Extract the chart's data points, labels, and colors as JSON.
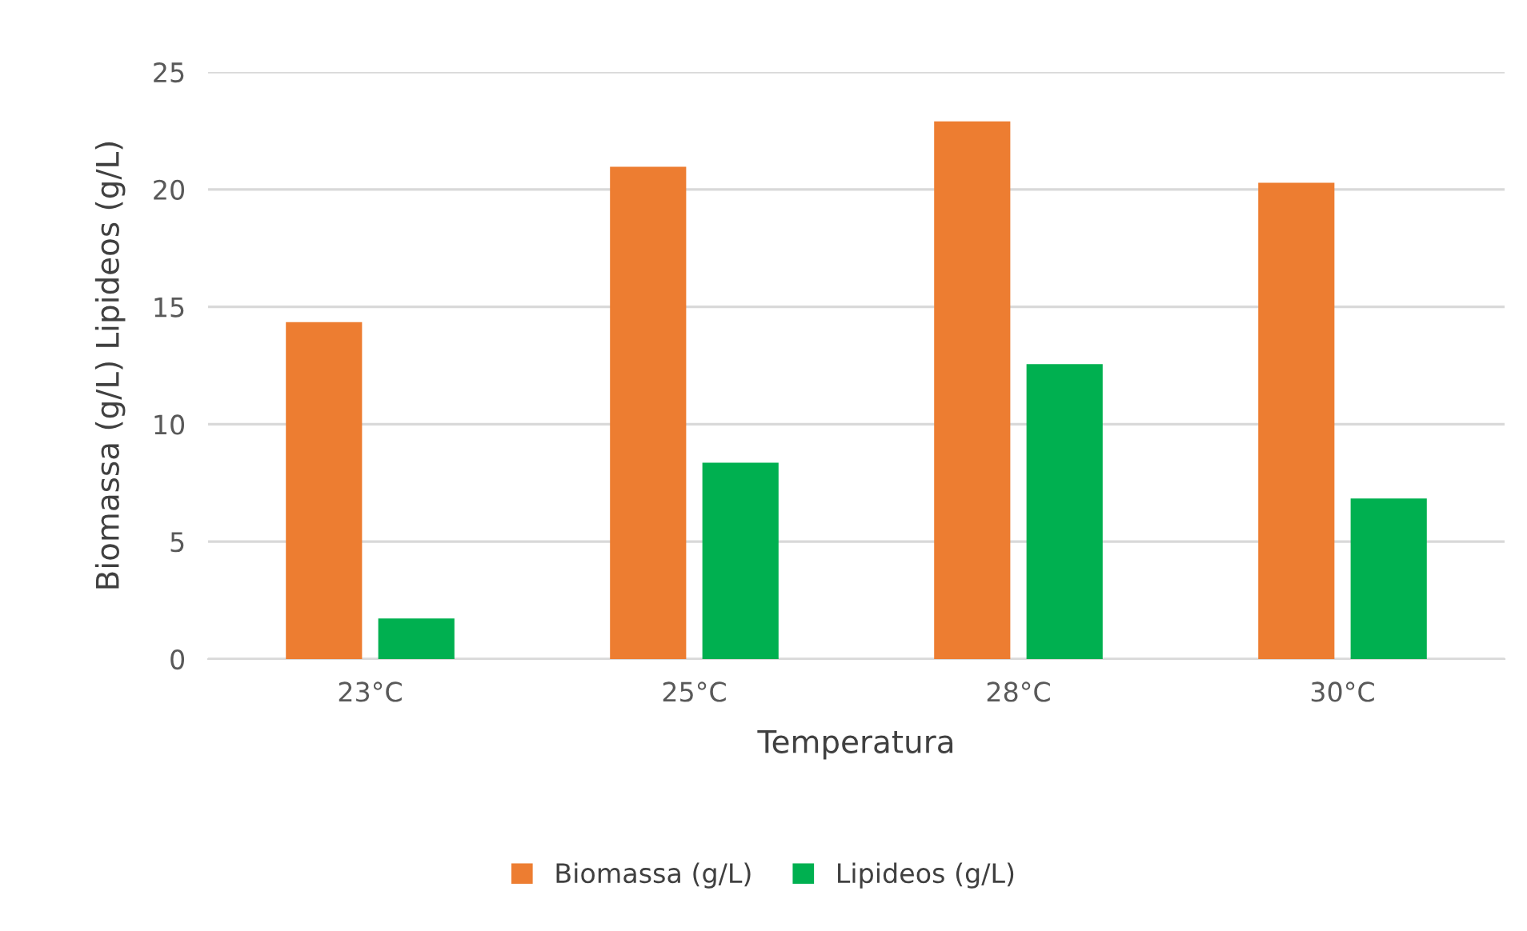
{
  "chart_data": {
    "type": "bar",
    "xlabel": "Temperatura",
    "ylabel": "Biomassa (g/L) Lipideos (g/L)",
    "categories": [
      "23°C",
      "25°C",
      "28°C",
      "30°C"
    ],
    "series": [
      {
        "name": "Biomassa (g/L)",
        "color": "#ed7d31",
        "values": [
          14.35,
          20.96,
          22.9,
          20.28
        ]
      },
      {
        "name": "Lipideos (g/L)",
        "color": "#00b050",
        "values": [
          1.73,
          8.36,
          12.56,
          6.84
        ]
      }
    ],
    "ylim": [
      0,
      25
    ],
    "yticks": [
      0,
      5,
      10,
      15,
      20,
      25
    ],
    "grid": "y",
    "legend": "bottom"
  }
}
